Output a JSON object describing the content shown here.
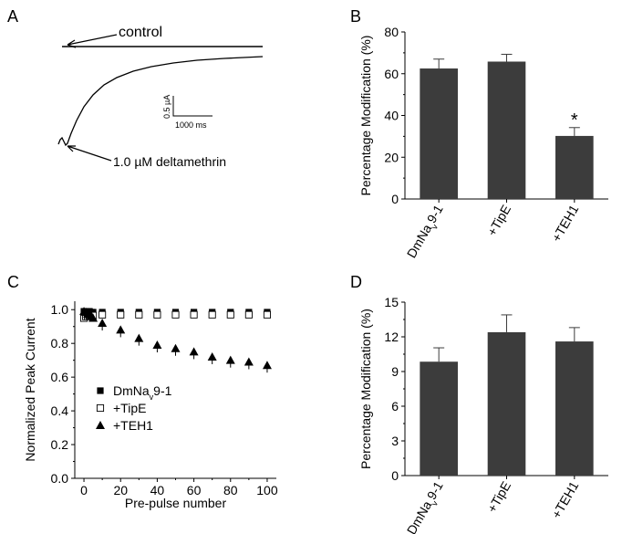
{
  "panels": {
    "a": {
      "letter": "A"
    },
    "b": {
      "letter": "B"
    },
    "c": {
      "letter": "C"
    },
    "d": {
      "letter": "D"
    }
  },
  "chart_data": [
    {
      "panel": "A",
      "type": "line",
      "description_labels": {
        "control": "control",
        "treated": "1.0 µM deltamethrin",
        "scalebar_y": "0.5 µA",
        "scalebar_x": "1000 ms"
      },
      "scale": {
        "current_uA": 0.5,
        "time_ms": 1000
      }
    },
    {
      "panel": "B",
      "type": "bar",
      "ylabel": "Percentage Modification (%)",
      "xlabel": "",
      "ylim": [
        0,
        80
      ],
      "yticks": [
        0,
        20,
        40,
        60,
        80
      ],
      "categories": [
        "DmNav9-1",
        "+TipE",
        "+TEH1"
      ],
      "values": [
        62.5,
        65.8,
        30.2
      ],
      "errors": [
        4.5,
        3.5,
        4.0
      ],
      "annotations": [
        "",
        "",
        "*"
      ],
      "bar_color": "#3c3c3c"
    },
    {
      "panel": "C",
      "type": "scatter",
      "xlabel": "Pre-pulse number",
      "ylabel": "Normalized Peak Current",
      "xlim": [
        -5,
        105
      ],
      "ylim": [
        0.0,
        1.05
      ],
      "xticks": [
        0,
        20,
        40,
        60,
        80,
        100
      ],
      "yticks": [
        "0.0",
        "0.2",
        "0.4",
        "0.6",
        "0.8",
        "1.0"
      ],
      "legend_position": "lower-left",
      "series": [
        {
          "name": "DmNav9-1",
          "marker": "filled-square",
          "x": [
            0,
            1,
            2,
            3,
            4,
            5,
            10,
            20,
            30,
            40,
            50,
            60,
            70,
            80,
            90,
            100
          ],
          "y": [
            0.99,
            0.99,
            0.99,
            0.99,
            0.985,
            0.985,
            0.985,
            0.985,
            0.985,
            0.985,
            0.985,
            0.985,
            0.985,
            0.985,
            0.985,
            0.985
          ]
        },
        {
          "name": "+TipE",
          "marker": "open-square",
          "x": [
            0,
            1,
            2,
            3,
            4,
            5,
            10,
            20,
            30,
            40,
            50,
            60,
            70,
            80,
            90,
            100
          ],
          "y": [
            0.95,
            0.96,
            0.96,
            0.965,
            0.965,
            0.965,
            0.97,
            0.97,
            0.97,
            0.97,
            0.97,
            0.97,
            0.97,
            0.97,
            0.97,
            0.97
          ]
        },
        {
          "name": "+TEH1",
          "marker": "filled-triangle",
          "x": [
            0,
            1,
            2,
            3,
            4,
            5,
            10,
            20,
            30,
            40,
            50,
            60,
            70,
            80,
            90,
            100
          ],
          "y": [
            0.99,
            0.985,
            0.975,
            0.97,
            0.965,
            0.95,
            0.92,
            0.88,
            0.83,
            0.79,
            0.77,
            0.75,
            0.72,
            0.7,
            0.69,
            0.67
          ]
        }
      ]
    },
    {
      "panel": "D",
      "type": "bar",
      "ylabel": "Percentage Modification (%)",
      "xlabel": "",
      "ylim": [
        0,
        15
      ],
      "yticks": [
        0,
        3,
        6,
        9,
        12,
        15
      ],
      "categories": [
        "DmNav9-1",
        "+TipE",
        "+TEH1"
      ],
      "values": [
        9.85,
        12.4,
        11.6
      ],
      "errors": [
        1.2,
        1.5,
        1.2
      ],
      "bar_color": "#3c3c3c"
    }
  ]
}
